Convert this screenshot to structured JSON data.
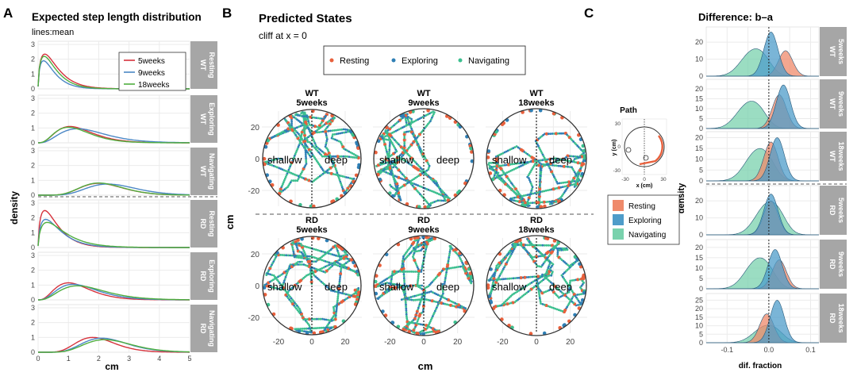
{
  "panels": {
    "A": {
      "letter": "A",
      "title": "Expected step length distribution",
      "subtitle": "lines:mean",
      "ylabel": "density",
      "xlabel": "cm",
      "xticks": [
        "0",
        "1",
        "2",
        "3",
        "4",
        "5"
      ],
      "yticks": [
        "0",
        "1",
        "2",
        "3"
      ],
      "legend": [
        "5weeks",
        "9weeks",
        "18weeks"
      ],
      "strips": [
        {
          "group": "WT",
          "state": "Resting"
        },
        {
          "group": "WT",
          "state": "Exploring"
        },
        {
          "group": "WT",
          "state": "Navigating"
        },
        {
          "group": "RD",
          "state": "Resting"
        },
        {
          "group": "RD",
          "state": "Exploring"
        },
        {
          "group": "RD",
          "state": "Navigating"
        }
      ]
    },
    "B": {
      "letter": "B",
      "title": "Predicted States",
      "subtitle": "cliff at x = 0",
      "legend": [
        "Resting",
        "Exploring",
        "Navigating"
      ],
      "ylabel": "cm",
      "xlabel": "cm",
      "xticks": [
        "-20",
        "0",
        "20"
      ],
      "yticks": [
        "20",
        "0",
        "-20"
      ],
      "arenas": [
        {
          "group": "WT",
          "age": "5weeks"
        },
        {
          "group": "WT",
          "age": "9weeks"
        },
        {
          "group": "WT",
          "age": "18weeks"
        },
        {
          "group": "RD",
          "age": "5weeks"
        },
        {
          "group": "RD",
          "age": "9weeks"
        },
        {
          "group": "RD",
          "age": "18weeks"
        }
      ],
      "shallow_label": "shallow",
      "deep_label": "deep"
    },
    "C": {
      "letter": "C",
      "title": "Difference: b–a",
      "inset_title": "Path",
      "inset_xlabel": "x (cm)",
      "inset_ylabel": "y (cm)",
      "inset_xticks": [
        "-30",
        "0",
        "30"
      ],
      "inset_yticks": [
        "30",
        "0",
        "-30"
      ],
      "legend": [
        "Resting",
        "Exploring",
        "Navigating"
      ],
      "ylabel": "density",
      "xlabel": "dif. fraction",
      "xticks": [
        "-0.1",
        "0.0",
        "0.1"
      ],
      "strips": [
        {
          "group": "WT",
          "age": "5weeks",
          "yticks": [
            "0",
            "10",
            "20"
          ]
        },
        {
          "group": "WT",
          "age": "9weeks",
          "yticks": [
            "0",
            "5",
            "10",
            "15",
            "20"
          ]
        },
        {
          "group": "WT",
          "age": "18weeks",
          "yticks": [
            "0",
            "5",
            "10",
            "15",
            "20"
          ]
        },
        {
          "group": "RD",
          "age": "5weeks",
          "yticks": [
            "0",
            "10",
            "20"
          ]
        },
        {
          "group": "RD",
          "age": "9weeks",
          "yticks": [
            "0",
            "5",
            "10",
            "15",
            "20"
          ]
        },
        {
          "group": "RD",
          "age": "18weeks",
          "yticks": [
            "0",
            "5",
            "10",
            "15",
            "20",
            "25"
          ]
        }
      ]
    }
  },
  "colors": {
    "resting": "#e8603c",
    "exploring": "#2f7fb5",
    "navigating": "#3cbf8f",
    "fill_resting": "#ef8a6b",
    "fill_exploring": "#4e9cc9",
    "fill_navigating": "#79d2ad",
    "line_5w": "#d6323c",
    "line_9w": "#4b87c5",
    "line_18w": "#4fae3f",
    "strip_bg": "#a6a6a6",
    "panel_bg": "#ffffff",
    "grid": "#ebebeb"
  },
  "chart_data": [
    {
      "type": "line",
      "title": "Expected step length distribution",
      "subtitle": "lines:mean",
      "xlabel": "cm",
      "ylabel": "density",
      "xlim": [
        0,
        5
      ],
      "ylim": [
        0,
        3
      ],
      "facets": [
        {
          "group": "WT",
          "state": "Resting",
          "series": [
            {
              "name": "5weeks",
              "peak_x": 0.22,
              "peak_y": 2.35
            },
            {
              "name": "9weeks",
              "peak_x": 0.18,
              "peak_y": 1.9
            },
            {
              "name": "18weeks",
              "peak_x": 0.2,
              "peak_y": 2.2
            }
          ]
        },
        {
          "group": "WT",
          "state": "Exploring",
          "series": [
            {
              "name": "5weeks",
              "peak_x": 1.05,
              "peak_y": 1.1
            },
            {
              "name": "9weeks",
              "peak_x": 1.3,
              "peak_y": 0.95
            },
            {
              "name": "18weeks",
              "peak_x": 1.0,
              "peak_y": 1.05
            }
          ]
        },
        {
          "group": "WT",
          "state": "Navigating",
          "series": [
            {
              "name": "5weeks",
              "peak_x": 2.0,
              "peak_y": 0.8
            },
            {
              "name": "9weeks",
              "peak_x": 2.3,
              "peak_y": 0.75
            },
            {
              "name": "18weeks",
              "peak_x": 2.0,
              "peak_y": 0.82
            }
          ]
        },
        {
          "group": "RD",
          "state": "Resting",
          "series": [
            {
              "name": "5weeks",
              "peak_x": 0.22,
              "peak_y": 2.5
            },
            {
              "name": "9weeks",
              "peak_x": 0.25,
              "peak_y": 1.9
            },
            {
              "name": "18weeks",
              "peak_x": 0.3,
              "peak_y": 1.7
            }
          ]
        },
        {
          "group": "RD",
          "state": "Exploring",
          "series": [
            {
              "name": "5weeks",
              "peak_x": 1.0,
              "peak_y": 1.15
            },
            {
              "name": "9weeks",
              "peak_x": 1.15,
              "peak_y": 1.05
            },
            {
              "name": "18weeks",
              "peak_x": 1.3,
              "peak_y": 0.95
            }
          ]
        },
        {
          "group": "RD",
          "state": "Navigating",
          "series": [
            {
              "name": "5weeks",
              "peak_x": 1.8,
              "peak_y": 1.0
            },
            {
              "name": "9weeks",
              "peak_x": 2.1,
              "peak_y": 0.95
            },
            {
              "name": "18weeks",
              "peak_x": 2.2,
              "peak_y": 0.85
            }
          ]
        }
      ]
    },
    {
      "type": "scatter",
      "title": "Predicted States",
      "subtitle": "cliff at x = 0",
      "xlabel": "cm",
      "ylabel": "cm",
      "xlim": [
        -30,
        30
      ],
      "ylim": [
        -30,
        30
      ],
      "series": [
        {
          "name": "Resting"
        },
        {
          "name": "Exploring"
        },
        {
          "name": "Navigating"
        }
      ]
    },
    {
      "type": "area",
      "title": "Difference: b–a",
      "xlabel": "dif. fraction",
      "ylabel": "density",
      "xlim": [
        -0.15,
        0.12
      ],
      "facets": [
        {
          "group": "WT",
          "age": "5weeks",
          "ylim": [
            0,
            28
          ],
          "series": [
            {
              "name": "Navigating",
              "peak_x": -0.04,
              "peak_y": 14
            },
            {
              "name": "Exploring",
              "peak_x": 0.005,
              "peak_y": 26
            },
            {
              "name": "Resting",
              "peak_x": 0.04,
              "peak_y": 15
            }
          ]
        },
        {
          "group": "WT",
          "age": "9weeks",
          "ylim": [
            0,
            24
          ],
          "series": [
            {
              "name": "Navigating",
              "peak_x": -0.05,
              "peak_y": 12
            },
            {
              "name": "Exploring",
              "peak_x": 0.035,
              "peak_y": 22
            },
            {
              "name": "Resting",
              "peak_x": 0.025,
              "peak_y": 17
            }
          ]
        },
        {
          "group": "WT",
          "age": "18weeks",
          "ylim": [
            0,
            22
          ],
          "series": [
            {
              "name": "Navigating",
              "peak_x": -0.03,
              "peak_y": 13
            },
            {
              "name": "Exploring",
              "peak_x": 0.02,
              "peak_y": 20
            },
            {
              "name": "Resting",
              "peak_x": 0.005,
              "peak_y": 18
            }
          ]
        },
        {
          "group": "RD",
          "age": "5weeks",
          "ylim": [
            0,
            28
          ],
          "series": [
            {
              "name": "Navigating",
              "peak_x": -0.005,
              "peak_y": 17
            },
            {
              "name": "Exploring",
              "peak_x": 0.005,
              "peak_y": 24
            },
            {
              "name": "Resting",
              "peak_x": 0.005,
              "peak_y": 20
            }
          ]
        },
        {
          "group": "RD",
          "age": "9weeks",
          "ylim": [
            0,
            23
          ],
          "series": [
            {
              "name": "Navigating",
              "peak_x": -0.03,
              "peak_y": 13
            },
            {
              "name": "Exploring",
              "peak_x": 0.015,
              "peak_y": 19
            },
            {
              "name": "Resting",
              "peak_x": 0.025,
              "peak_y": 14
            }
          ]
        },
        {
          "group": "RD",
          "age": "18weeks",
          "ylim": [
            0,
            28
          ],
          "series": [
            {
              "name": "Navigating",
              "peak_x": -0.01,
              "peak_y": 9
            },
            {
              "name": "Exploring",
              "peak_x": 0.02,
              "peak_y": 25
            },
            {
              "name": "Resting",
              "peak_x": -0.005,
              "peak_y": 17
            }
          ]
        }
      ]
    }
  ]
}
